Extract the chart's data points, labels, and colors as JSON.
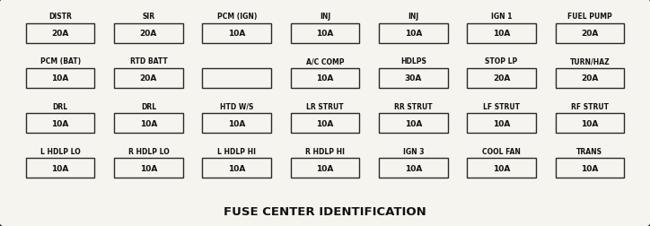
{
  "title": "FUSE CENTER IDENTIFICATION",
  "outer_bg_color": "#ccc9bb",
  "inner_bg_color": "#f5f4ef",
  "box_face_color": "#f5f4ef",
  "box_edge_color": "#2a2a2a",
  "title_fontsize": 9.5,
  "label_fontsize": 5.5,
  "value_fontsize": 6.5,
  "rows": [
    [
      {
        "label": "DISTR",
        "value": "20A"
      },
      {
        "label": "SIR",
        "value": "20A"
      },
      {
        "label": "PCM (IGN)",
        "value": "10A"
      },
      {
        "label": "INJ",
        "value": "10A"
      },
      {
        "label": "INJ",
        "value": "10A"
      },
      {
        "label": "IGN 1",
        "value": "10A"
      },
      {
        "label": "FUEL PUMP",
        "value": "20A"
      }
    ],
    [
      {
        "label": "PCM (BAT)",
        "value": "10A"
      },
      {
        "label": "RTD BATT",
        "value": "20A"
      },
      {
        "label": "",
        "value": ""
      },
      {
        "label": "A/C COMP",
        "value": "10A"
      },
      {
        "label": "HDLPS",
        "value": "30A"
      },
      {
        "label": "STOP LP",
        "value": "20A"
      },
      {
        "label": "TURN/HAZ",
        "value": "20A"
      }
    ],
    [
      {
        "label": "DRL",
        "value": "10A"
      },
      {
        "label": "DRL",
        "value": "10A"
      },
      {
        "label": "HTD W/S",
        "value": "10A"
      },
      {
        "label": "LR STRUT",
        "value": "10A"
      },
      {
        "label": "RR STRUT",
        "value": "10A"
      },
      {
        "label": "LF STRUT",
        "value": "10A"
      },
      {
        "label": "RF STRUT",
        "value": "10A"
      }
    ],
    [
      {
        "label": "L HDLP LO",
        "value": "10A"
      },
      {
        "label": "R HDLP LO",
        "value": "10A"
      },
      {
        "label": "L HDLP HI",
        "value": "10A"
      },
      {
        "label": "R HDLP HI",
        "value": "10A"
      },
      {
        "label": "IGN 3",
        "value": "10A"
      },
      {
        "label": "COOL FAN",
        "value": "10A"
      },
      {
        "label": "TRANS",
        "value": "10A"
      }
    ]
  ]
}
